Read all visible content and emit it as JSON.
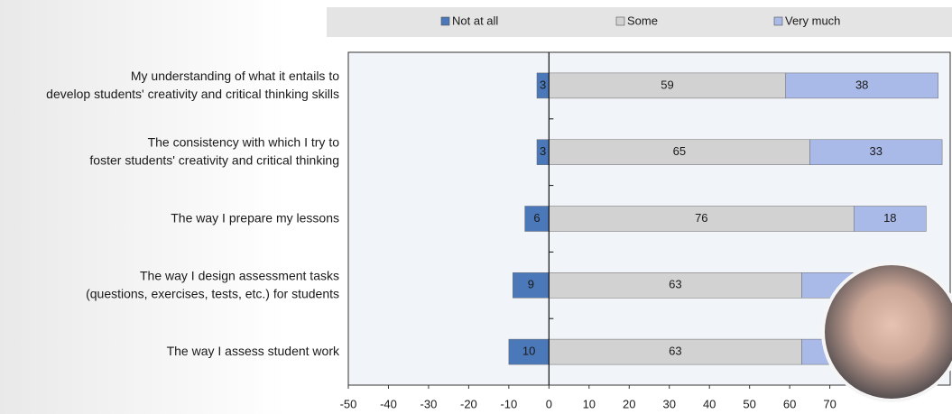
{
  "chart_data": {
    "type": "diverging_bar",
    "categories": [
      [
        "My understanding of what it entails to",
        "develop students' creativity and critical thinking skills"
      ],
      [
        "The consistency with which I try to",
        "foster students' creativity and critical thinking"
      ],
      [
        "The way I prepare my lessons"
      ],
      [
        "The way I design assessment tasks",
        "(questions, exercises, tests, etc.) for students"
      ],
      [
        "The way I assess student work"
      ]
    ],
    "series": [
      {
        "name": "Not at all",
        "color": "#4a78b8",
        "values": [
          -3,
          -3,
          -6,
          -9,
          -10
        ],
        "value_labels": [
          "3",
          "3",
          "6",
          "9",
          "10"
        ]
      },
      {
        "name": "Some",
        "color": "#d2d2d2",
        "values": [
          59,
          65,
          76,
          63,
          63
        ]
      },
      {
        "name": "Very much",
        "color": "#a9b9e8",
        "values": [
          38,
          33,
          18,
          28,
          27
        ],
        "value_labels": [
          "38",
          "33",
          "18",
          null,
          null
        ]
      }
    ],
    "xlim": [
      -50,
      100
    ],
    "xticks": [
      -50,
      -40,
      -30,
      -20,
      -10,
      0,
      10,
      20,
      30,
      40,
      50,
      60,
      70
    ],
    "legend": "top"
  }
}
